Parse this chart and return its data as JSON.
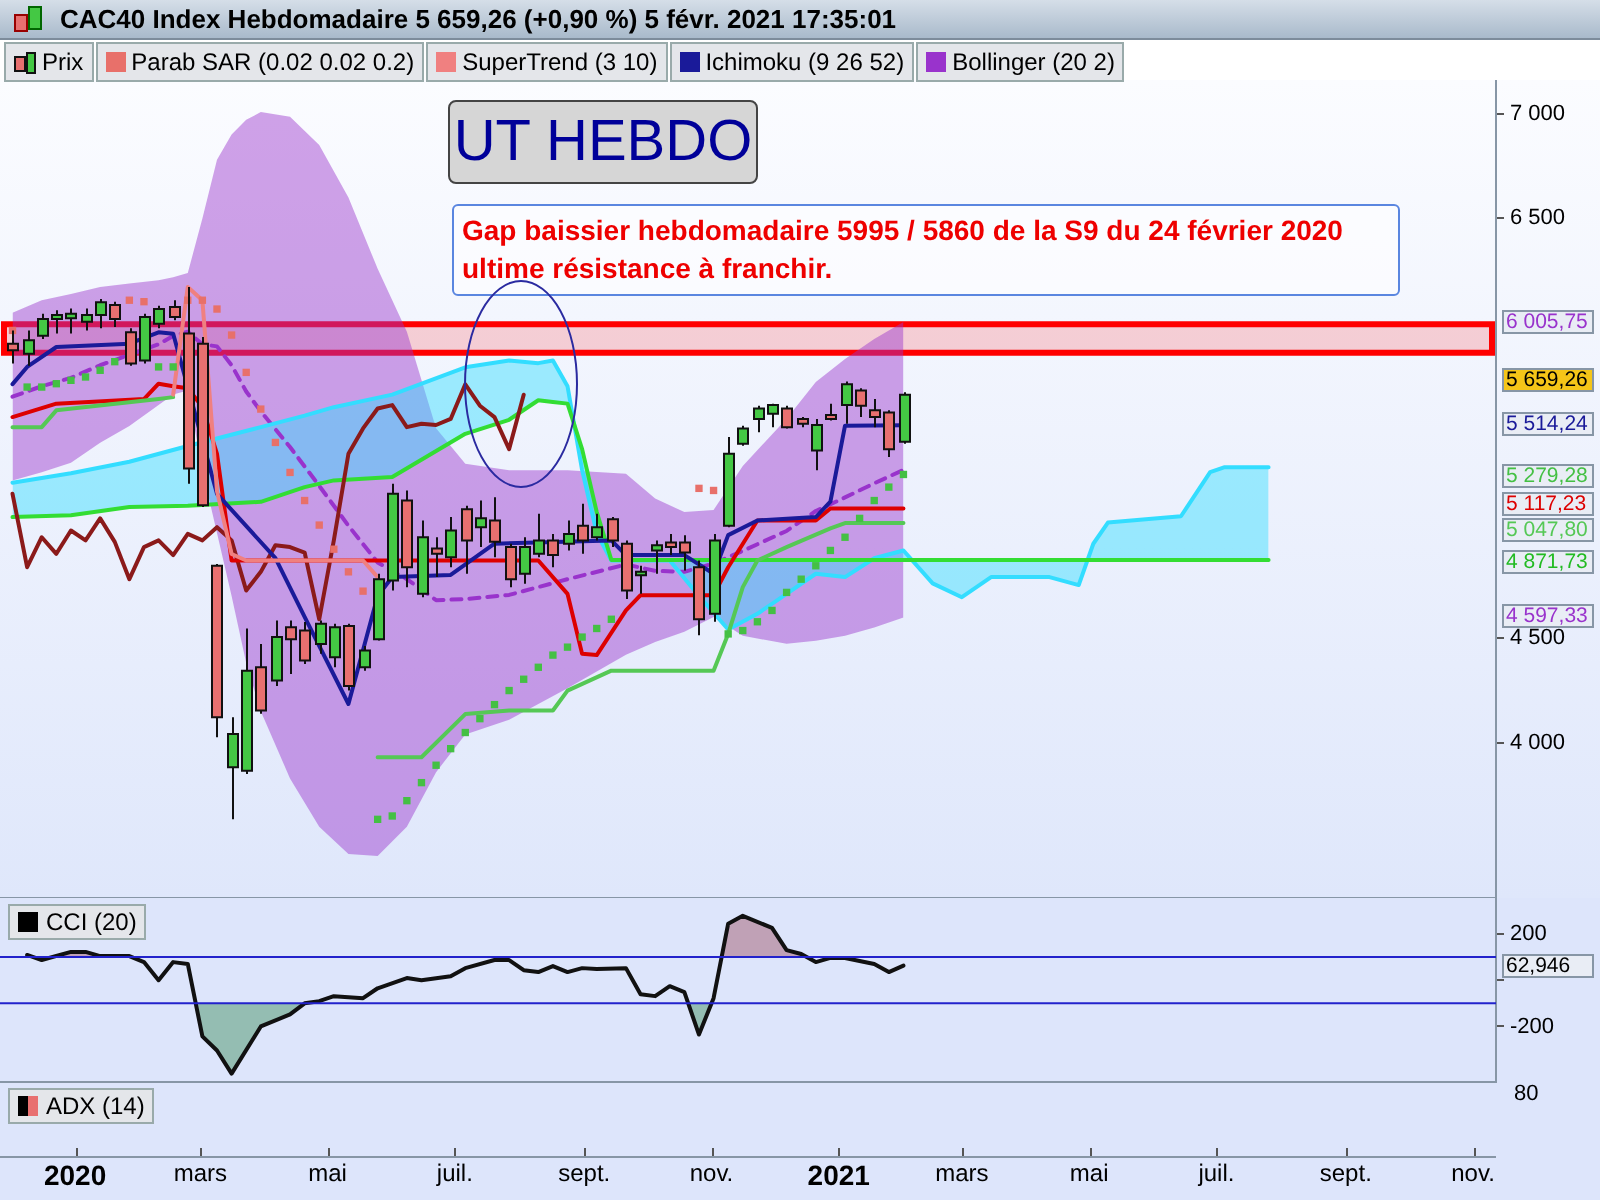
{
  "chart_data": [
    {
      "type": "candlestick",
      "title": "CAC40 Index Hebdomadaire 5 659,26 (+0,90 %) 5 févr. 2021 17:35:01",
      "legend": "top left",
      "tick_labels": "y",
      "xlim": [
        "2019-11-26",
        "2021-11-12"
      ],
      "ylim": [
        3260,
        7160
      ],
      "yticks": [
        {
          "value": 4000,
          "label": "4 000"
        },
        {
          "value": 4500,
          "label": "4 500"
        },
        {
          "value": 6500,
          "label": "6 500"
        },
        {
          "value": 7000,
          "label": "7 000"
        }
      ],
      "bands": [
        {
          "axis": "y",
          "from": 5860,
          "to": 5995,
          "color": "#ff0000"
        }
      ],
      "annotations": [
        "UT HEBDO",
        "Gap baissier hebdomadaire 5995 / 5860 de la S9 du 24 février 2020 ultime résistance à franchir.",
        "6 005,75",
        "5 659,26",
        "5 514,24",
        "5 279,28",
        "5 117,23",
        "5 047,80",
        "4 871,73",
        "4 597,33"
      ],
      "x": [
        "2019-12-02",
        "2019-12-09",
        "2019-12-16",
        "2019-12-23",
        "2019-12-30",
        "2020-01-06",
        "2020-01-13",
        "2020-01-20",
        "2020-01-27",
        "2020-02-03",
        "2020-02-10",
        "2020-02-17",
        "2020-02-24",
        "2020-03-02",
        "2020-03-09",
        "2020-03-16",
        "2020-03-23",
        "2020-03-30",
        "2020-04-06",
        "2020-04-13",
        "2020-04-20",
        "2020-04-27",
        "2020-05-04",
        "2020-05-11",
        "2020-05-18",
        "2020-05-25",
        "2020-06-01",
        "2020-06-08",
        "2020-06-15",
        "2020-06-22",
        "2020-06-29",
        "2020-07-06",
        "2020-07-13",
        "2020-07-20",
        "2020-07-27",
        "2020-08-03",
        "2020-08-10",
        "2020-08-17",
        "2020-08-24",
        "2020-08-31",
        "2020-09-07",
        "2020-09-14",
        "2020-09-21",
        "2020-09-28",
        "2020-10-05",
        "2020-10-12",
        "2020-10-19",
        "2020-10-26",
        "2020-11-02",
        "2020-11-09",
        "2020-11-16",
        "2020-11-23",
        "2020-11-30",
        "2020-12-07",
        "2020-12-14",
        "2020-12-21",
        "2020-12-28",
        "2021-01-04",
        "2021-01-11",
        "2021-01-18",
        "2021-01-25",
        "2021-02-01"
      ],
      "series": [
        {
          "name": "Prix",
          "type": "candlestick",
          "ohlc": [
            [
              5903,
              5966,
              5808,
              5871
            ],
            [
              5855,
              5966,
              5798,
              5919
            ],
            [
              5941,
              6046,
              5925,
              6021
            ],
            [
              6021,
              6062,
              5951,
              6040
            ],
            [
              6024,
              6071,
              5951,
              6046
            ],
            [
              6008,
              6071,
              5966,
              6040
            ],
            [
              6040,
              6116,
              5976,
              6100
            ],
            [
              6087,
              6103,
              5982,
              6021
            ],
            [
              5957,
              5976,
              5798,
              5808
            ],
            [
              5823,
              6046,
              5808,
              6030
            ],
            [
              5998,
              6084,
              5976,
              6068
            ],
            [
              6078,
              6110,
              6014,
              6030
            ],
            [
              5951,
              6173,
              5235,
              5308
            ],
            [
              5903,
              5935,
              5124,
              5133
            ],
            [
              4844,
              4853,
              4026,
              4122
            ],
            [
              3883,
              4122,
              3635,
              4042
            ],
            [
              3867,
              4545,
              3851,
              4344
            ],
            [
              4360,
              4471,
              4138,
              4154
            ],
            [
              4297,
              4583,
              4271,
              4504
            ],
            [
              4551,
              4583,
              4328,
              4494
            ],
            [
              4535,
              4576,
              4376,
              4392
            ],
            [
              4471,
              4583,
              4424,
              4567
            ],
            [
              4408,
              4567,
              4360,
              4551
            ],
            [
              4557,
              4567,
              4249,
              4271
            ],
            [
              4360,
              4462,
              4344,
              4440
            ],
            [
              4494,
              4806,
              4488,
              4780
            ],
            [
              4774,
              5235,
              4726,
              5187
            ],
            [
              5155,
              5203,
              4742,
              4837
            ],
            [
              4710,
              5060,
              4694,
              4980
            ],
            [
              4926,
              4980,
              4790,
              4901
            ],
            [
              4885,
              5076,
              4837,
              5012
            ],
            [
              5114,
              5130,
              4806,
              4965
            ],
            [
              5028,
              5155,
              4933,
              5070
            ],
            [
              5060,
              5171,
              4885,
              4958
            ],
            [
              4933,
              4949,
              4742,
              4780
            ],
            [
              4806,
              4980,
              4758,
              4933
            ],
            [
              4901,
              5092,
              4885,
              4965
            ],
            [
              4965,
              4996,
              4837,
              4895
            ],
            [
              4949,
              5060,
              4917,
              4996
            ],
            [
              5035,
              5140,
              4901,
              4965
            ],
            [
              4980,
              5092,
              4965,
              5028
            ],
            [
              5066,
              5076,
              4933,
              4965
            ],
            [
              4949,
              4965,
              4685,
              4726
            ],
            [
              4799,
              4844,
              4710,
              4815
            ],
            [
              4917,
              4965,
              4806,
              4942
            ],
            [
              4955,
              4996,
              4895,
              4933
            ],
            [
              4955,
              4990,
              4821,
              4907
            ],
            [
              4837,
              4869,
              4513,
              4589
            ],
            [
              4615,
              4996,
              4577,
              4965
            ],
            [
              5035,
              5458,
              5028,
              5378
            ],
            [
              5426,
              5512,
              5416,
              5499
            ],
            [
              5544,
              5607,
              5480,
              5594
            ],
            [
              5569,
              5617,
              5505,
              5610
            ],
            [
              5594,
              5607,
              5499,
              5505
            ],
            [
              5544,
              5553,
              5505,
              5521
            ],
            [
              5394,
              5544,
              5299,
              5515
            ],
            [
              5563,
              5617,
              5537,
              5544
            ],
            [
              5610,
              5722,
              5521,
              5709
            ],
            [
              5680,
              5690,
              5553,
              5607
            ],
            [
              5585,
              5639,
              5505,
              5553
            ],
            [
              5575,
              5585,
              5362,
              5400
            ],
            [
              5435,
              5671,
              5426,
              5659.26
            ]
          ]
        },
        {
          "name": "Parab SAR (0.02 0.02 0.2)",
          "type": "scatter",
          "marker": "square",
          "color": "#e8706a",
          "x": [
            "2019-12-02",
            "2020-01-27",
            "2020-02-03",
            "2020-02-24",
            "2020-03-02",
            "2020-03-09",
            "2020-03-16",
            "2020-03-23",
            "2020-03-30",
            "2020-04-06",
            "2020-04-13",
            "2020-04-20",
            "2020-04-27",
            "2020-05-04",
            "2020-05-11",
            "2020-05-18",
            "2020-10-26",
            "2020-11-02"
          ],
          "values": [
            5966,
            6110,
            6103,
            6110,
            6110,
            6068,
            5944,
            5766,
            5591,
            5432,
            5289,
            5155,
            5038,
            4923,
            4815,
            4723,
            5213,
            5203
          ]
        },
        {
          "type": "scatter",
          "marker": "square",
          "color": "#44c044",
          "x": [
            "2019-12-09",
            "2019-12-16",
            "2019-12-23",
            "2019-12-30",
            "2020-01-06",
            "2020-01-13",
            "2020-01-20",
            "2020-02-10",
            "2020-02-17",
            "2020-05-25",
            "2020-06-01",
            "2020-06-08",
            "2020-06-15",
            "2020-06-22",
            "2020-06-29",
            "2020-07-06",
            "2020-07-13",
            "2020-07-20",
            "2020-07-27",
            "2020-08-03",
            "2020-08-10",
            "2020-08-17",
            "2020-08-24",
            "2020-08-31",
            "2020-09-07",
            "2020-09-14",
            "2020-11-09",
            "2020-11-16",
            "2020-11-23",
            "2020-11-30",
            "2020-12-07",
            "2020-12-14",
            "2020-12-21",
            "2020-12-28",
            "2021-01-04",
            "2021-01-11",
            "2021-01-18",
            "2021-01-25",
            "2021-02-01"
          ],
          "values": [
            5696,
            5696,
            5712,
            5728,
            5744,
            5776,
            5817,
            5792,
            5792,
            3635,
            3651,
            3724,
            3810,
            3893,
            3972,
            4049,
            4115,
            4182,
            4249,
            4303,
            4360,
            4418,
            4456,
            4504,
            4545,
            4589,
            4519,
            4535,
            4577,
            4631,
            4717,
            4780,
            4844,
            4917,
            4980,
            5070,
            5155,
            5219,
            5279.28
          ]
        },
        {
          "name": "SuperTrend (3 10)",
          "type": "line",
          "color": "#f08080",
          "x": [
            "2020-02-17",
            "2020-02-24",
            "2020-03-02",
            "2020-03-09",
            "2020-03-16",
            "2020-03-23",
            "2020-05-18",
            "2020-05-25"
          ],
          "values": [
            5660,
            6173,
            6110,
            5200,
            4900,
            4869,
            4869,
            4790
          ]
        },
        {
          "type": "line",
          "color": "#55c855",
          "x": [
            "2019-12-02",
            "2019-12-16",
            "2019-12-23",
            "2020-02-10",
            "2020-02-17"
          ],
          "values": [
            5505,
            5505,
            5585,
            5639,
            5648
          ]
        },
        {
          "type": "line",
          "color": "#55c855",
          "x": [
            "2020-05-25",
            "2020-06-15",
            "2020-07-06",
            "2020-07-27",
            "2020-08-17",
            "2020-08-24",
            "2020-09-14",
            "2020-11-02",
            "2020-11-09",
            "2020-11-16",
            "2020-11-23",
            "2020-12-07",
            "2020-12-28",
            "2021-01-04",
            "2021-02-01"
          ],
          "values": [
            3931,
            3931,
            4137,
            4154,
            4154,
            4249,
            4344,
            4344,
            4519,
            4742,
            4869,
            4933,
            5022,
            5047.8,
            5047.8
          ]
        },
        {
          "name": "Ichimoku (9 26 52)",
          "type": "line",
          "color": "#1a1a99",
          "x": [
            "2019-12-02",
            "2019-12-09",
            "2019-12-23",
            "2020-01-27",
            "2020-02-10",
            "2020-02-17",
            "2020-03-09",
            "2020-04-06",
            "2020-04-20",
            "2020-05-11",
            "2020-05-25",
            "2020-06-01",
            "2020-06-29",
            "2020-07-20",
            "2020-09-14",
            "2020-09-21",
            "2020-10-19",
            "2020-11-02",
            "2020-11-09",
            "2020-11-23",
            "2020-12-21",
            "2020-12-28",
            "2021-01-04",
            "2021-02-01"
          ],
          "values": [
            5710,
            5792,
            5887,
            5903,
            5957,
            5950,
            5187,
            4880,
            4600,
            4185,
            4700,
            4790,
            4800,
            4949,
            4965,
            4895,
            4895,
            4806,
            4990,
            5060,
            5076,
            5150,
            5512,
            5514.24
          ]
        },
        {
          "type": "line",
          "color": "#dd0000",
          "x": [
            "2019-12-02",
            "2019-12-23",
            "2020-02-03",
            "2020-02-10",
            "2020-02-17",
            "2020-02-24",
            "2020-03-02",
            "2020-03-09",
            "2020-03-16",
            "2020-07-20",
            "2020-08-10",
            "2020-08-24",
            "2020-08-31",
            "2020-09-07",
            "2020-09-21",
            "2020-09-28",
            "2020-11-02",
            "2020-11-09",
            "2020-11-23",
            "2020-12-21",
            "2020-12-28",
            "2021-02-01"
          ],
          "values": [
            5553,
            5617,
            5639,
            5712,
            5700,
            5690,
            5601,
            5378,
            4869,
            4869,
            4869,
            4710,
            4424,
            4418,
            4631,
            4704,
            4704,
            4837,
            5060,
            5060,
            5117.23,
            5117.23
          ]
        },
        {
          "type": "line",
          "color": "#8b1a1a",
          "x": [
            "2019-12-02",
            "2019-12-09",
            "2019-12-16",
            "2019-12-23",
            "2019-12-30",
            "2020-01-06",
            "2020-01-13",
            "2020-01-20",
            "2020-01-27",
            "2020-02-03",
            "2020-02-10",
            "2020-02-17",
            "2020-02-24",
            "2020-03-02",
            "2020-03-09",
            "2020-03-16",
            "2020-03-23",
            "2020-03-30",
            "2020-04-06",
            "2020-04-13",
            "2020-04-20",
            "2020-04-27",
            "2020-05-04",
            "2020-05-11",
            "2020-05-18",
            "2020-05-25",
            "2020-06-01",
            "2020-06-08",
            "2020-06-15",
            "2020-06-22",
            "2020-06-29",
            "2020-07-06",
            "2020-07-13",
            "2020-07-20",
            "2020-07-27",
            "2020-08-03"
          ],
          "values": [
            5187,
            4837,
            4980,
            4901,
            5012,
            4965,
            5070,
            4958,
            4780,
            4933,
            4965,
            4895,
            4996,
            4965,
            5028,
            4965,
            4726,
            4815,
            4942,
            4933,
            4907,
            4589,
            4965,
            5378,
            5499,
            5594,
            5610,
            5505,
            5521,
            5515,
            5544,
            5709,
            5607,
            5553,
            5400,
            5659.26
          ]
        },
        {
          "type": "line",
          "color": "#33ddff",
          "x": [
            "2019-12-02",
            "2019-12-30",
            "2020-01-27",
            "2020-02-24",
            "2020-03-30",
            "2020-04-20",
            "2020-05-04",
            "2020-06-01",
            "2020-07-06",
            "2020-07-27",
            "2020-08-10",
            "2020-08-17",
            "2020-08-24",
            "2020-08-31",
            "2020-09-07",
            "2020-09-14",
            "2020-10-12",
            "2020-10-26",
            "2020-11-09",
            "2020-11-23",
            "2020-12-07",
            "2020-12-21",
            "2021-01-04",
            "2021-01-18",
            "2021-02-01",
            "2021-02-15",
            "2021-03-01",
            "2021-03-15",
            "2021-04-12",
            "2021-04-26",
            "2021-05-03",
            "2021-05-10",
            "2021-06-14",
            "2021-06-28",
            "2021-07-05",
            "2021-07-26"
          ],
          "values": [
            5240,
            5285,
            5340,
            5415,
            5505,
            5560,
            5600,
            5660,
            5790,
            5823,
            5810,
            5823,
            5700,
            5300,
            5000,
            4869,
            4869,
            4700,
            4540,
            4615,
            4710,
            4806,
            4790,
            4880,
            4917,
            4760,
            4694,
            4790,
            4790,
            4752,
            4949,
            5050,
            5080,
            5290,
            5314,
            5314
          ],
          "upper": [
            5240,
            5285,
            5340,
            5415,
            5505,
            5560,
            5600,
            5660,
            5790,
            5823,
            5810,
            5823,
            5700,
            5300,
            5000,
            4869,
            4869,
            4700,
            4540,
            4615,
            4710,
            4806,
            4790,
            4880,
            4917,
            4760,
            4694,
            4790,
            4790,
            4752,
            4949,
            5050,
            5080,
            5290,
            5314,
            5314
          ],
          "lower": [
            5076,
            5085,
            5124,
            5130,
            5149,
            5219,
            5251,
            5267,
            5473,
            5540,
            5633,
            5625,
            5617,
            5400,
            5100,
            4871.73,
            4871.73,
            4871.73,
            4871.73,
            4871.73,
            4871.73,
            4871.73,
            4871.73,
            4871.73,
            4871.73,
            4871.73,
            4871.73,
            4871.73,
            4871.73,
            4871.73,
            4871.73,
            4871.73,
            4871.73,
            4871.73,
            4871.73,
            4871.73
          ]
        },
        {
          "type": "line",
          "color": "#33dd33",
          "x": [
            "2019-12-02",
            "2019-12-30",
            "2020-01-27",
            "2020-02-24",
            "2020-03-30",
            "2020-04-20",
            "2020-05-04",
            "2020-06-01",
            "2020-07-06",
            "2020-07-27",
            "2020-08-10",
            "2020-08-17",
            "2020-08-24",
            "2020-08-31",
            "2020-09-07",
            "2020-09-14",
            "2020-10-12",
            "2020-10-26",
            "2020-11-09",
            "2020-11-23",
            "2020-12-07",
            "2020-12-21",
            "2021-01-04",
            "2021-01-18",
            "2021-02-01",
            "2021-02-15",
            "2021-03-01",
            "2021-03-15",
            "2021-04-12",
            "2021-04-26",
            "2021-05-03",
            "2021-05-10",
            "2021-06-14",
            "2021-06-28",
            "2021-07-05",
            "2021-07-26"
          ],
          "values": [
            5076,
            5085,
            5124,
            5130,
            5149,
            5219,
            5251,
            5267,
            5473,
            5540,
            5633,
            5625,
            5617,
            5400,
            5100,
            4871.73,
            4871.73,
            4871.73,
            4871.73,
            4871.73,
            4871.73,
            4871.73,
            4871.73,
            4871.73,
            4871.73,
            4871.73,
            4871.73,
            4871.73,
            4871.73,
            4871.73,
            4871.73,
            4871.73,
            4871.73,
            4871.73,
            4871.73,
            4871.73
          ]
        },
        {
          "name": "Bollinger (20 2)",
          "type": "line",
          "color": "#9933cc",
          "line_style": "dashed",
          "x": [
            "2019-12-02",
            "2019-12-16",
            "2019-12-30",
            "2020-01-13",
            "2020-01-27",
            "2020-02-10",
            "2020-02-17",
            "2020-02-24",
            "2020-03-02",
            "2020-03-09",
            "2020-03-16",
            "2020-03-23",
            "2020-03-30",
            "2020-04-13",
            "2020-04-27",
            "2020-05-11",
            "2020-05-25",
            "2020-06-08",
            "2020-06-22",
            "2020-07-06",
            "2020-07-27",
            "2020-08-24",
            "2020-09-21",
            "2020-10-05",
            "2020-10-19",
            "2020-11-02",
            "2020-11-16",
            "2020-12-07",
            "2020-12-21",
            "2021-01-04",
            "2021-01-18",
            "2021-02-01"
          ],
          "values": [
            5650,
            5700,
            5740,
            5800,
            5850,
            5900,
            5940,
            5960,
            5900,
            5890,
            5800,
            5675,
            5580,
            5410,
            5225,
            5035,
            4860,
            4780,
            4680,
            4685,
            4705,
            4780,
            4850,
            4820,
            4815,
            4855,
            4915,
            5010,
            5105,
            5170,
            5237,
            5301
          ],
          "upper": [
            6050,
            6110,
            6140,
            6173,
            6190,
            6205,
            6220,
            6240,
            6500,
            6780,
            6900,
            6970,
            7007,
            6985,
            6850,
            6600,
            6260,
            5960,
            5500,
            5330,
            5299,
            5299,
            5283,
            5165,
            5100,
            5110,
            5320,
            5545,
            5720,
            5830,
            5925,
            6005.75
          ],
          "lower": [
            5250,
            5290,
            5335,
            5430,
            5510,
            5610,
            5660,
            5680,
            5300,
            5000,
            4700,
            4380,
            4150,
            3830,
            3600,
            3470,
            3460,
            3600,
            3860,
            4040,
            4110,
            4260,
            4420,
            4480,
            4530,
            4600,
            4510,
            4472,
            4487,
            4510,
            4550,
            4597.33
          ]
        }
      ]
    },
    {
      "type": "line",
      "title": "CCI (20)",
      "xlim": [
        "2019-11-26",
        "2021-11-12"
      ],
      "ylim": [
        -440,
        355
      ],
      "xticks": [
        {
          "value": "2020-01-01",
          "label": "2020"
        },
        {
          "value": "2020-03-01",
          "label": "mars"
        },
        {
          "value": "2020-05-01",
          "label": "mai"
        },
        {
          "value": "2020-07-01",
          "label": "juil."
        },
        {
          "value": "2020-09-01",
          "label": "sept."
        },
        {
          "value": "2020-11-01",
          "label": "nov."
        },
        {
          "value": "2021-01-01",
          "label": "2021"
        },
        {
          "value": "2021-03-01",
          "label": "mars"
        },
        {
          "value": "2021-05-01",
          "label": "mai"
        },
        {
          "value": "2021-07-01",
          "label": "juil."
        },
        {
          "value": "2021-09-01",
          "label": "sept."
        },
        {
          "value": "2021-11-01",
          "label": "nov."
        }
      ],
      "yticks": [
        200,
        {
          "value": 0,
          "label": null
        },
        -200
      ],
      "ref_lines": [
        {
          "axis": "y",
          "value": 100,
          "color": "#2222cc"
        },
        {
          "axis": "y",
          "value": -100,
          "color": "#2222cc"
        }
      ],
      "annotations": [
        "62,946"
      ],
      "series": [
        {
          "color": "#111111",
          "x": [
            "2019-12-09",
            "2019-12-16",
            "2019-12-30",
            "2020-01-06",
            "2020-01-13",
            "2020-01-27",
            "2020-02-03",
            "2020-02-10",
            "2020-02-17",
            "2020-02-24",
            "2020-03-02",
            "2020-03-09",
            "2020-03-16",
            "2020-03-30",
            "2020-04-13",
            "2020-04-20",
            "2020-04-27",
            "2020-05-04",
            "2020-05-18",
            "2020-05-25",
            "2020-06-08",
            "2020-06-15",
            "2020-06-29",
            "2020-07-06",
            "2020-07-20",
            "2020-07-27",
            "2020-08-03",
            "2020-08-10",
            "2020-08-17",
            "2020-08-24",
            "2020-08-31",
            "2020-09-07",
            "2020-09-21",
            "2020-09-28",
            "2020-10-05",
            "2020-10-12",
            "2020-10-19",
            "2020-10-26",
            "2020-11-02",
            "2020-11-09",
            "2020-11-16",
            "2020-11-30",
            "2020-12-07",
            "2020-12-14",
            "2020-12-21",
            "2020-12-28",
            "2021-01-04",
            "2021-01-18",
            "2021-01-25",
            "2021-02-01"
          ],
          "values": [
            109,
            87,
            122,
            122,
            104,
            104,
            78,
            0,
            78,
            70,
            -243,
            -304,
            -404,
            -200,
            -148,
            -100,
            -91,
            -69,
            -78,
            -35,
            9,
            0,
            17,
            52,
            87,
            87,
            43,
            35,
            61,
            35,
            52,
            48,
            52,
            -61,
            -69,
            -26,
            -52,
            -235,
            -78,
            244,
            278,
            226,
            130,
            113,
            78,
            96,
            96,
            70,
            35,
            62.946
          ]
        }
      ]
    },
    {
      "type": "other",
      "title": "ADX (14)",
      "annotations": [
        "80"
      ]
    }
  ]
}
